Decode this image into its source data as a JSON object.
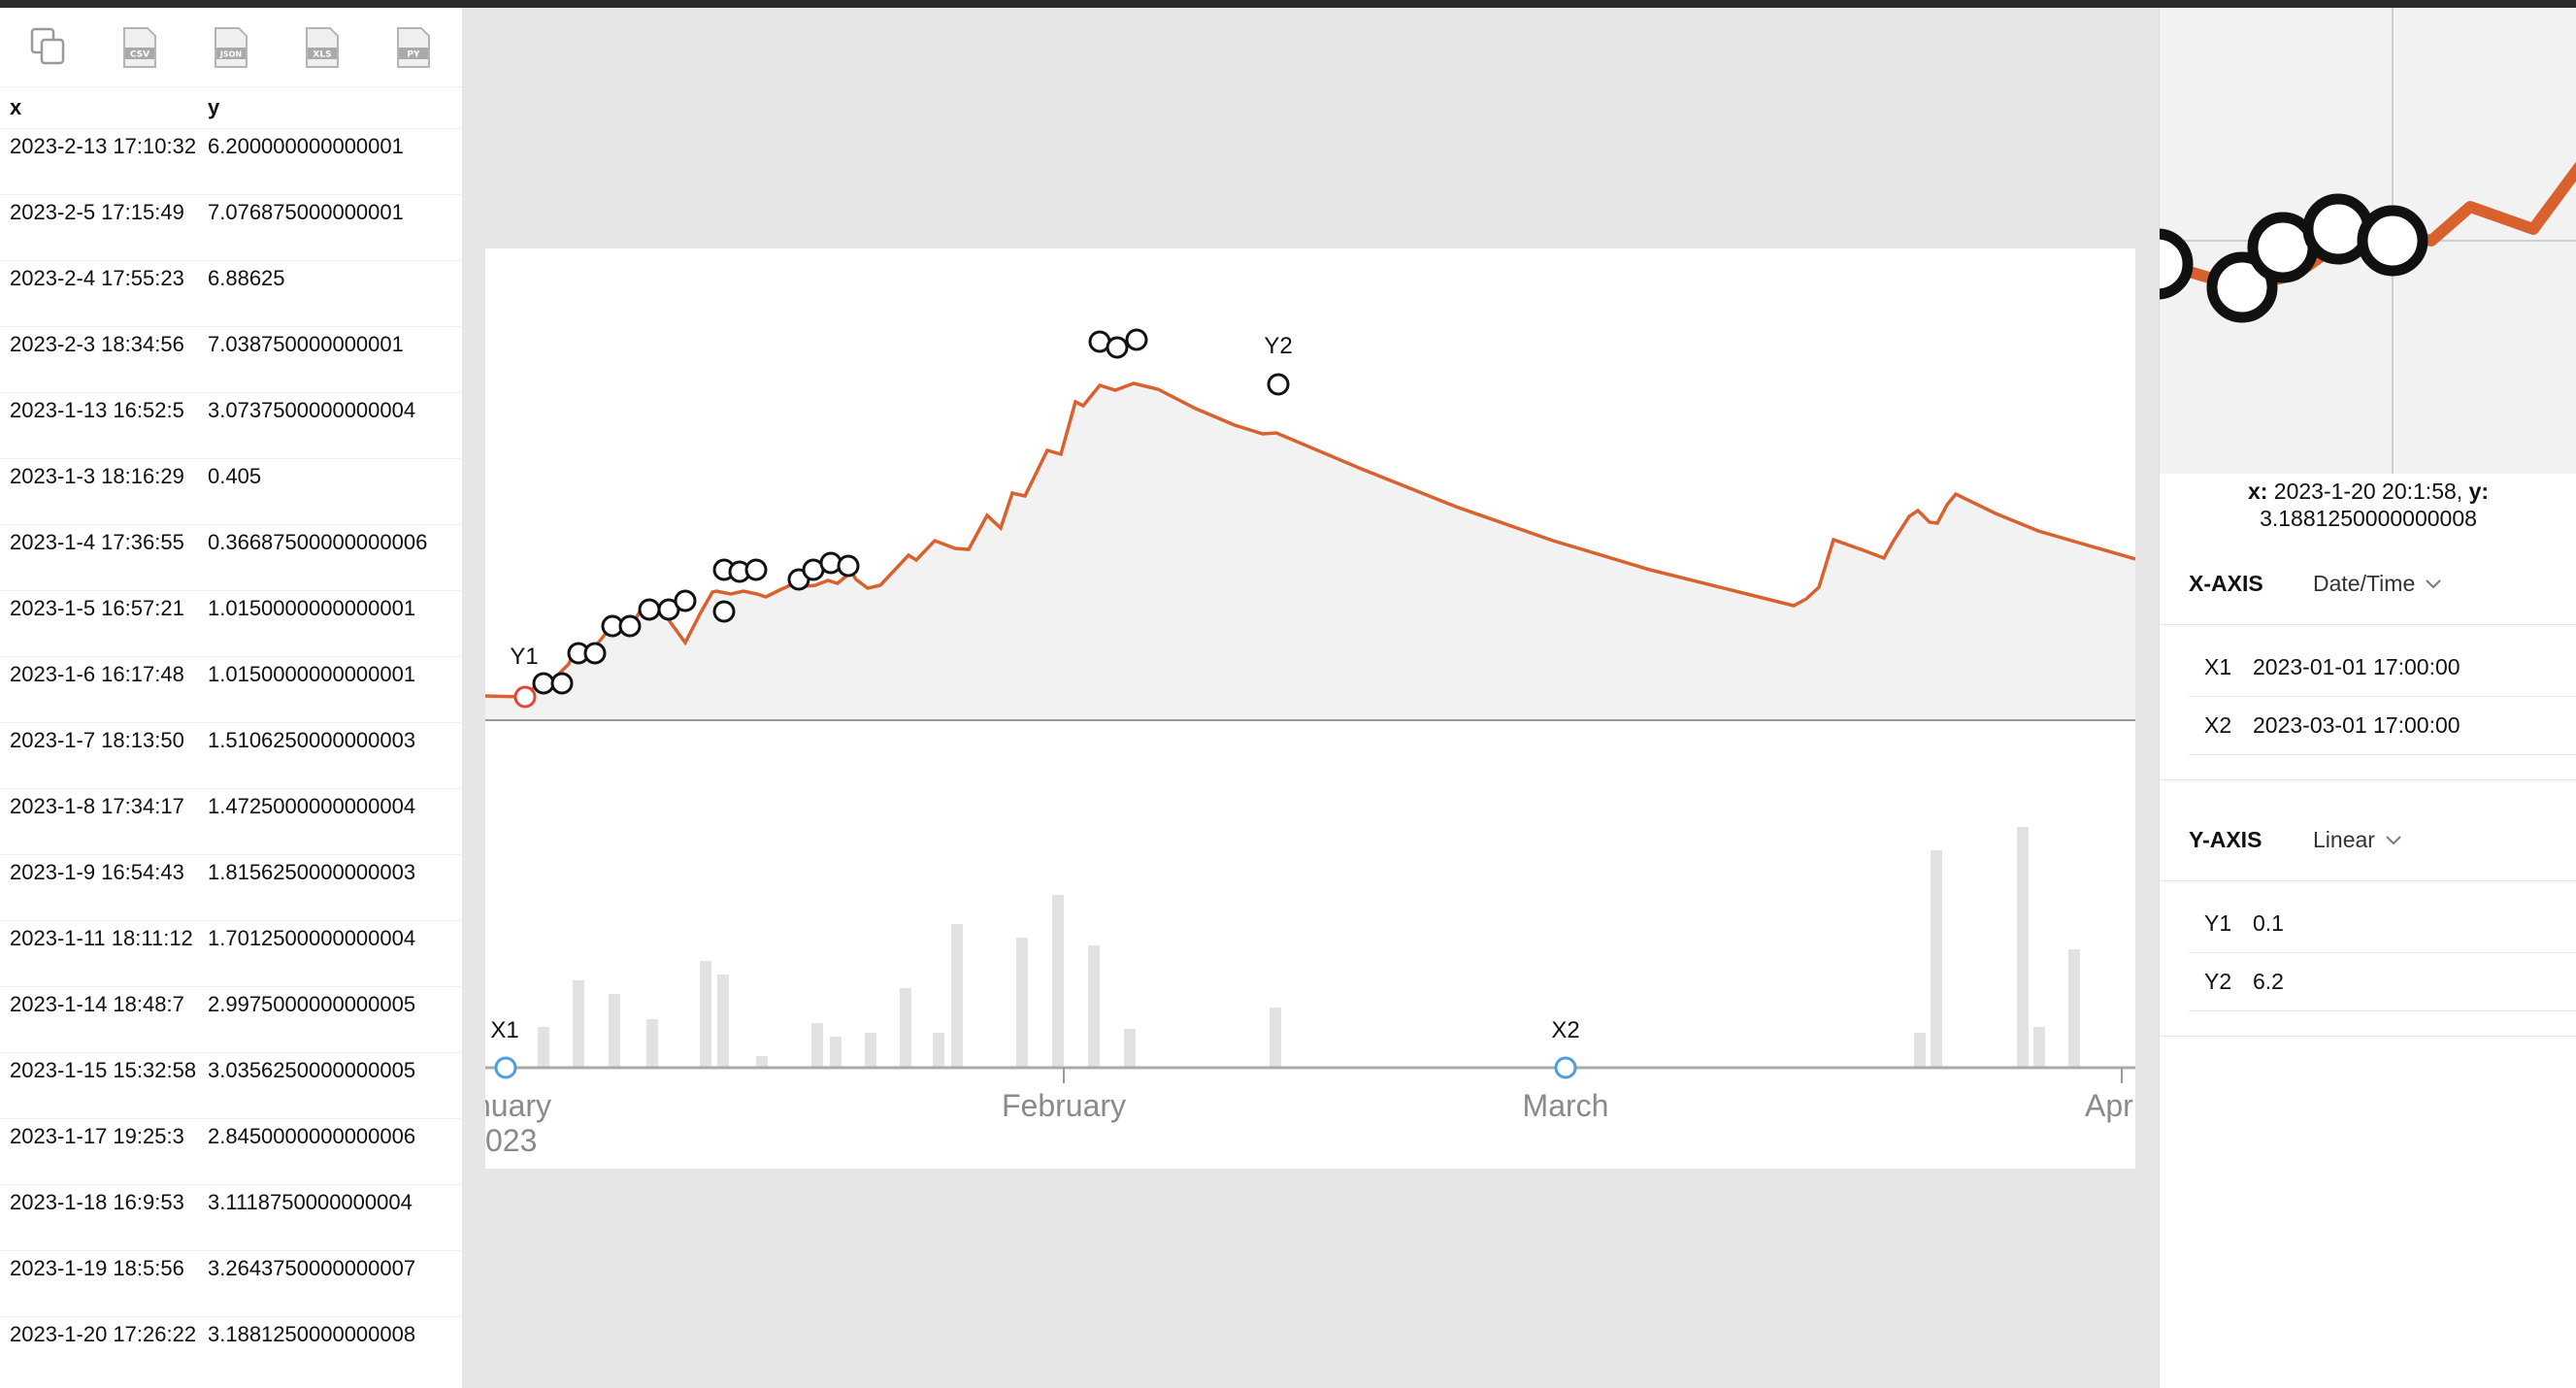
{
  "toolbar": {
    "icons": [
      "copy-icon",
      "csv-file-icon",
      "json-file-icon",
      "xls-file-icon",
      "py-file-icon"
    ],
    "badges": [
      "CSV",
      "JSON",
      "XLS",
      "PY"
    ]
  },
  "table": {
    "headers": [
      "x",
      "y"
    ],
    "rows": [
      [
        "2023-2-13 17:10:32",
        "6.200000000000001"
      ],
      [
        "2023-2-5 17:15:49",
        "7.076875000000001"
      ],
      [
        "2023-2-4 17:55:23",
        "6.88625"
      ],
      [
        "2023-2-3 18:34:56",
        "7.038750000000001"
      ],
      [
        "2023-1-13 16:52:5",
        "3.0737500000000004"
      ],
      [
        "2023-1-3 18:16:29",
        "0.405"
      ],
      [
        "2023-1-4 17:36:55",
        "0.36687500000000006"
      ],
      [
        "2023-1-5 16:57:21",
        "1.0150000000000001"
      ],
      [
        "2023-1-6 16:17:48",
        "1.0150000000000001"
      ],
      [
        "2023-1-7 18:13:50",
        "1.5106250000000003"
      ],
      [
        "2023-1-8 17:34:17",
        "1.4725000000000004"
      ],
      [
        "2023-1-9 16:54:43",
        "1.8156250000000003"
      ],
      [
        "2023-1-11 18:11:12",
        "1.7012500000000004"
      ],
      [
        "2023-1-14 18:48:7",
        "2.9975000000000005"
      ],
      [
        "2023-1-15 15:32:58",
        "3.0356250000000005"
      ],
      [
        "2023-1-17 19:25:3",
        "2.8450000000000006"
      ],
      [
        "2023-1-18 16:9:53",
        "3.1118750000000004"
      ],
      [
        "2023-1-19 18:5:56",
        "3.2643750000000007"
      ],
      [
        "2023-1-20 17:26:22",
        "3.1881250000000008"
      ]
    ]
  },
  "chart": {
    "markers": {
      "y1": "Y1",
      "y2": "Y2",
      "x1": "X1",
      "x2": "X2"
    },
    "month_labels": [
      "nuary",
      "February",
      "March",
      "Apr"
    ],
    "year_label": "023",
    "colors": {
      "line": "#d9612e",
      "area": "#f2f2f2",
      "bar": "#e2e2e2",
      "handle": "#4a9fe0",
      "axis": "#999999"
    }
  },
  "readout": {
    "x_label": "x:",
    "x_value": "2023-1-20 20:1:58,",
    "y_label": "y:",
    "y_value": "3.1881250000000008"
  },
  "x_axis": {
    "label": "X-AXIS",
    "type": "Date/Time",
    "x1_key": "X1",
    "x1": "2023-01-01 17:00:00",
    "x2_key": "X2",
    "x2": "2023-03-01 17:00:00"
  },
  "y_axis": {
    "label": "Y-AXIS",
    "type": "Linear",
    "y1_key": "Y1",
    "y1": "0.1",
    "y2_key": "Y2",
    "y2": "6.2"
  }
}
